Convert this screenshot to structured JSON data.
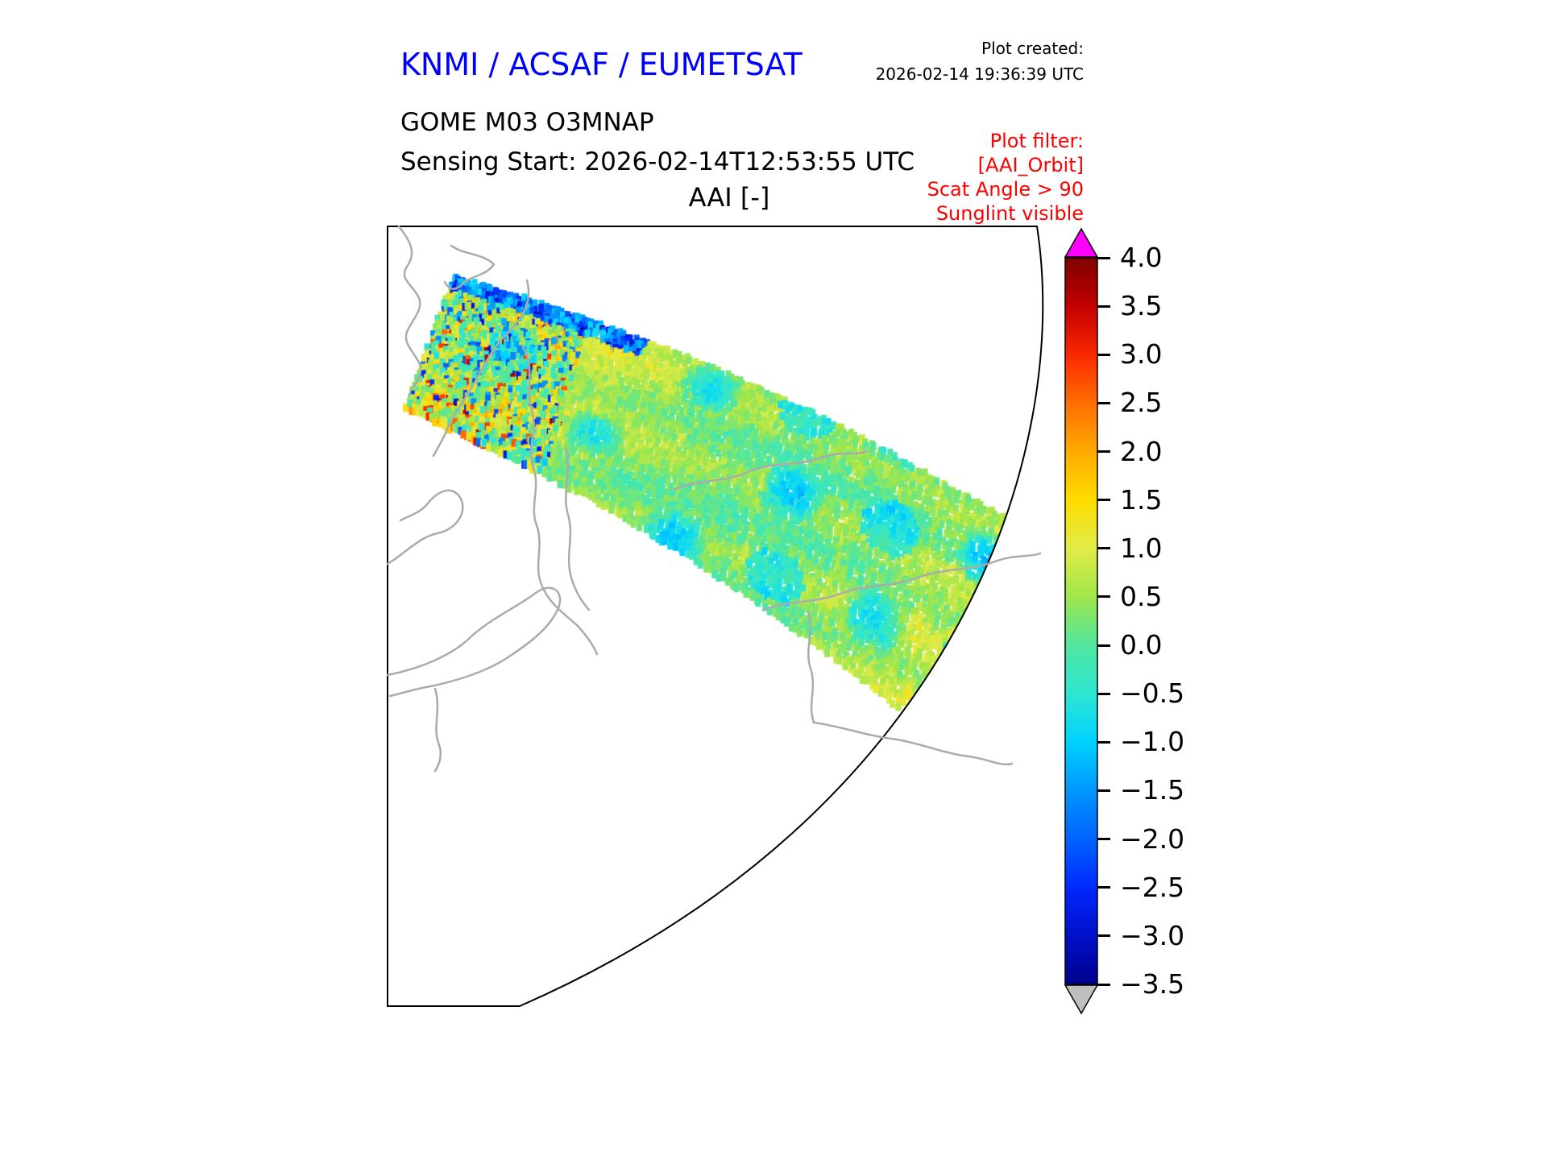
{
  "header": {
    "org_title": "KNMI / ACSAF / EUMETSAT",
    "plot_created_label": "Plot created:",
    "plot_created_value": "2026-02-14 19:36:39 UTC",
    "product_line": "GOME M03 O3MNAP",
    "sensing_line": "Sensing Start: 2026-02-14T12:53:55 UTC",
    "plot_title": "AAI [-]",
    "filter": {
      "label": "Plot filter:",
      "lines": [
        "[AAI_Orbit]",
        "Scat Angle > 90",
        "Sunglint visible"
      ]
    }
  },
  "colors": {
    "org_title_blue": "#0000ff",
    "filter_red": "#ff0000",
    "coastline_gray": "#ababab",
    "frame_black": "#000000",
    "over_range_magenta": "#ff00ff",
    "under_range_gray": "#bfbfbf"
  },
  "colorbar": {
    "min": -3.5,
    "max": 4.0,
    "tick_labels": [
      "4.0",
      "3.5",
      "3.0",
      "2.5",
      "2.0",
      "1.5",
      "1.0",
      "0.5",
      "0.0",
      "−0.5",
      "−1.0",
      "−1.5",
      "−2.0",
      "−2.5",
      "−3.0",
      "−3.5"
    ],
    "stops": [
      {
        "v": -3.5,
        "color": "#00008b"
      },
      {
        "v": -3.0,
        "color": "#0010c8"
      },
      {
        "v": -2.5,
        "color": "#0028ff"
      },
      {
        "v": -2.0,
        "color": "#0064ff"
      },
      {
        "v": -1.5,
        "color": "#0096ff"
      },
      {
        "v": -1.0,
        "color": "#00d2ff"
      },
      {
        "v": -0.5,
        "color": "#2de6d2"
      },
      {
        "v": 0.0,
        "color": "#50e6a0"
      },
      {
        "v": 0.5,
        "color": "#a0e64b"
      },
      {
        "v": 1.0,
        "color": "#e1eb46"
      },
      {
        "v": 1.5,
        "color": "#ffdc00"
      },
      {
        "v": 2.0,
        "color": "#ffaa00"
      },
      {
        "v": 2.5,
        "color": "#ff6e00"
      },
      {
        "v": 3.0,
        "color": "#fa2800"
      },
      {
        "v": 3.5,
        "color": "#c30000"
      },
      {
        "v": 4.0,
        "color": "#7f0000"
      }
    ]
  },
  "chart_data": {
    "type": "heatmap",
    "title": "AAI [-]",
    "colorbar_range": [
      -3.5,
      4.0
    ],
    "colorbar_tick_step": 0.5,
    "colorbar_tick_labels": [
      "4.0",
      "3.5",
      "3.0",
      "2.5",
      "2.0",
      "1.5",
      "1.0",
      "0.5",
      "0.0",
      "−0.5",
      "−1.0",
      "−1.5",
      "−2.0",
      "−2.5",
      "−3.0",
      "−3.5"
    ],
    "colorbar_over_color": "#ff00ff",
    "colorbar_under_color": "#bfbfbf",
    "legend_position": "right",
    "notes": "Single satellite orbit swath of Absorbing Aerosol Index drawn over a polar map projection sector with gray coastlines. Swath values are mostly between −1.5 and +1.5 (green/yellow/cyan), with a noisy north-western edge containing dark-blue pixels (< −2) and isolated red streaks up to ~3.5."
  }
}
